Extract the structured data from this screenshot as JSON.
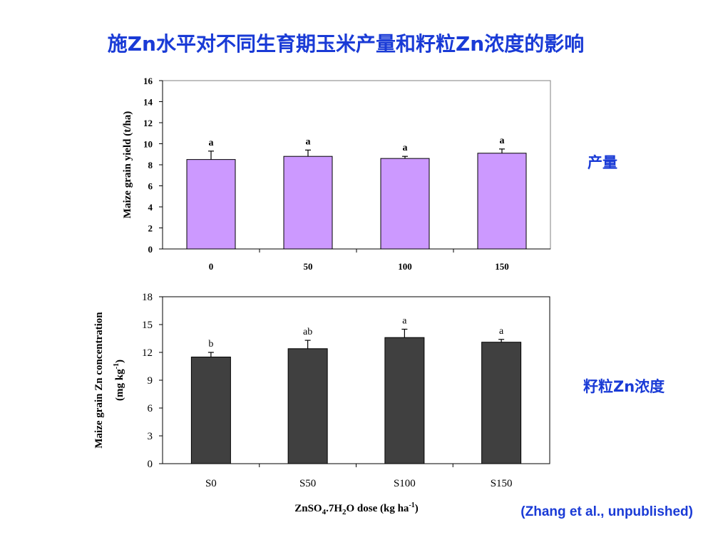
{
  "page": {
    "title": "施Zn水平对不同生育期玉米产量和籽粒Zn浓度的影响",
    "side_label_top": "产量",
    "side_label_bottom": "籽粒Zn浓度",
    "citation": "(Zhang et al., unpublished)"
  },
  "chart_data": [
    {
      "type": "bar",
      "title": "",
      "categories": [
        "0",
        "50",
        "100",
        "150"
      ],
      "values": [
        8.5,
        8.8,
        8.6,
        9.1
      ],
      "errors": [
        0.8,
        0.6,
        0.2,
        0.4
      ],
      "letters": [
        "a",
        "a",
        "a",
        "a"
      ],
      "ylabel": "Maize grain yield (t/ha)",
      "xlabel": "",
      "ylim": [
        0,
        16
      ],
      "yticks": [
        "0",
        "2",
        "4",
        "6",
        "8",
        "10",
        "12",
        "14",
        "16"
      ],
      "bar_color": "#cc99ff",
      "grid": false
    },
    {
      "type": "bar",
      "title": "",
      "categories": [
        "S0",
        "S50",
        "S100",
        "S150"
      ],
      "values": [
        11.5,
        12.4,
        13.6,
        13.1
      ],
      "errors": [
        0.5,
        0.9,
        0.9,
        0.3
      ],
      "letters": [
        "b",
        "ab",
        "a",
        "a"
      ],
      "ylabel_line1": "Maize grain Zn concentration",
      "ylabel_line2": "(mg kg",
      "ylabel_sup": "-1",
      "ylabel_close": ")",
      "xlabel_parts": {
        "a": "ZnSO",
        "b": "4",
        "c": ".7H",
        "d": "2",
        "e": "O dose (kg ha",
        "f": "-1",
        "g": ")"
      },
      "ylim": [
        0,
        18
      ],
      "yticks": [
        "0",
        "3",
        "6",
        "9",
        "12",
        "15",
        "18"
      ],
      "bar_color": "#404040",
      "grid": false
    }
  ]
}
